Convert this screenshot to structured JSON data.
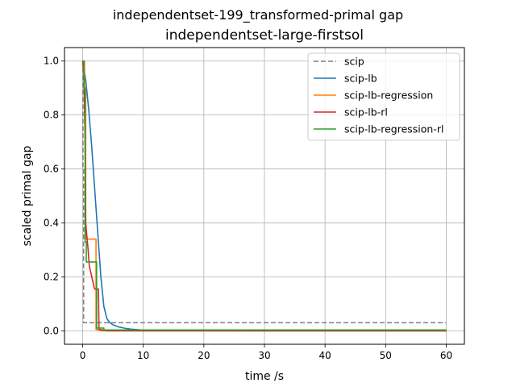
{
  "figure": {
    "suptitle": "independentset-199_transformed-primal gap",
    "title": "independentset-large-firstsol"
  },
  "chart_data": {
    "type": "line",
    "xlabel": "time /s",
    "ylabel": "scaled primal gap",
    "xlim": [
      -3,
      63
    ],
    "ylim": [
      -0.05,
      1.05
    ],
    "xticks": [
      0,
      10,
      20,
      30,
      40,
      50,
      60
    ],
    "yticks": [
      0.0,
      0.2,
      0.4,
      0.6,
      0.8,
      1.0
    ],
    "xtick_labels": [
      "0",
      "10",
      "20",
      "30",
      "40",
      "50",
      "60"
    ],
    "ytick_labels": [
      "0.0",
      "0.2",
      "0.4",
      "0.6",
      "0.8",
      "1.0"
    ],
    "grid": true,
    "legend_position": "upper right",
    "series": [
      {
        "name": "scip",
        "color": "#7f7f7f",
        "dashed": true,
        "step": true,
        "x": [
          0,
          0.05,
          0.15,
          60
        ],
        "y": [
          1.0,
          0.6,
          0.03,
          0.03
        ]
      },
      {
        "name": "scip-lb",
        "color": "#1f77b4",
        "dashed": false,
        "step": false,
        "x": [
          0,
          0.5,
          1,
          1.5,
          2,
          2.5,
          3,
          3.5,
          4,
          4.5,
          5,
          6,
          7,
          8,
          9,
          10,
          12,
          15,
          20,
          30,
          60
        ],
        "y": [
          1.0,
          0.93,
          0.82,
          0.68,
          0.52,
          0.36,
          0.2,
          0.09,
          0.045,
          0.03,
          0.022,
          0.014,
          0.009,
          0.006,
          0.004,
          0.002,
          0.001,
          0.0005,
          0.0002,
          0.0,
          0.0
        ]
      },
      {
        "name": "scip-lb-regression",
        "color": "#ff7f0e",
        "dashed": false,
        "step": true,
        "x": [
          0,
          0.3,
          0.5,
          1.0,
          2.2,
          2.4,
          3.0,
          60
        ],
        "y": [
          1.0,
          0.9,
          0.34,
          0.34,
          0.005,
          0.003,
          0.0,
          0.0
        ]
      },
      {
        "name": "scip-lb-rl",
        "color": "#d62728",
        "dashed": false,
        "step": false,
        "x": [
          0,
          0.2,
          0.4,
          0.5,
          0.9,
          1.1,
          1.3,
          1.6,
          1.9,
          2.0,
          2.6,
          2.7,
          3.0,
          4.0,
          60
        ],
        "y": [
          1.0,
          0.95,
          0.7,
          0.4,
          0.3,
          0.24,
          0.22,
          0.19,
          0.16,
          0.155,
          0.155,
          0.005,
          0.004,
          0.0,
          0.0
        ]
      },
      {
        "name": "scip-lb-regression-rl",
        "color": "#2ca02c",
        "dashed": false,
        "step": true,
        "x": [
          0,
          0.2,
          0.4,
          0.6,
          2.0,
          2.3,
          3.5,
          60
        ],
        "y": [
          1.0,
          0.9,
          0.33,
          0.255,
          0.255,
          0.01,
          0.003,
          0.0
        ]
      }
    ]
  }
}
